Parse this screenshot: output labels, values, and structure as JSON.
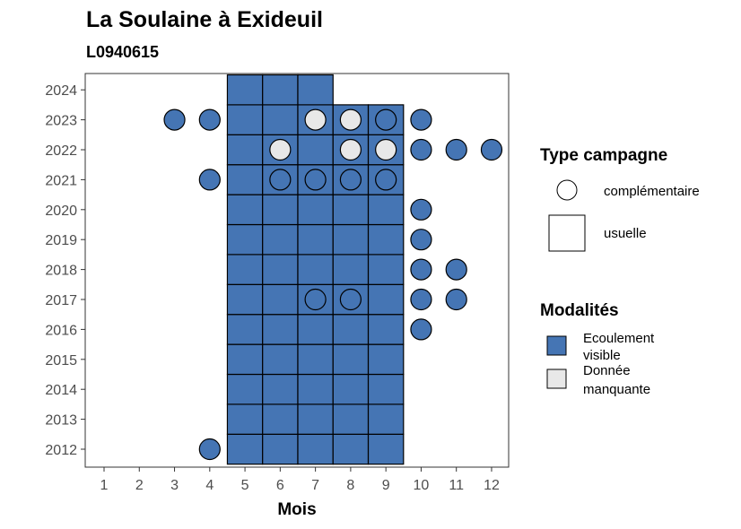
{
  "chart_data": {
    "type": "scatter",
    "title": "La Soulaine à Exideuil",
    "subtitle": "L0940615",
    "xlabel": "Mois",
    "ylabel": "",
    "x_ticks": [
      "1",
      "2",
      "3",
      "4",
      "5",
      "6",
      "7",
      "8",
      "9",
      "10",
      "11",
      "12"
    ],
    "y_ticks": [
      "2012",
      "2013",
      "2014",
      "2015",
      "2016",
      "2017",
      "2018",
      "2019",
      "2020",
      "2021",
      "2022",
      "2023",
      "2024"
    ],
    "xlim": [
      1,
      12
    ],
    "ylim": [
      2012,
      2024
    ],
    "grid": false,
    "legend_position": "right",
    "colors": {
      "ecoulement_visible": "#4575b4",
      "donnee_manquante": "#e8e8e8"
    },
    "legend": {
      "type_title": "Type campagne",
      "type_items": [
        {
          "shape": "circle",
          "label": "complémentaire"
        },
        {
          "shape": "square",
          "label": "usuelle"
        }
      ],
      "modalites_title": "Modalités",
      "modalites_items": [
        {
          "key": "ecoulement_visible",
          "label_lines": [
            "Ecoulement",
            "visible"
          ]
        },
        {
          "key": "donnee_manquante",
          "label_lines": [
            "Donnée",
            "manquante"
          ]
        }
      ]
    },
    "usuelle": [
      {
        "year": 2012,
        "months": [
          5,
          6,
          7,
          8,
          9
        ]
      },
      {
        "year": 2013,
        "months": [
          5,
          6,
          7,
          8,
          9
        ]
      },
      {
        "year": 2014,
        "months": [
          5,
          6,
          7,
          8,
          9
        ]
      },
      {
        "year": 2015,
        "months": [
          5,
          6,
          7,
          8,
          9
        ]
      },
      {
        "year": 2016,
        "months": [
          5,
          6,
          7,
          8,
          9
        ]
      },
      {
        "year": 2017,
        "months": [
          5,
          6,
          7,
          8,
          9
        ]
      },
      {
        "year": 2018,
        "months": [
          5,
          6,
          7,
          8,
          9
        ]
      },
      {
        "year": 2019,
        "months": [
          5,
          6,
          7,
          8,
          9
        ]
      },
      {
        "year": 2020,
        "months": [
          5,
          6,
          7,
          8,
          9
        ]
      },
      {
        "year": 2021,
        "months": [
          5,
          6,
          7,
          8,
          9
        ]
      },
      {
        "year": 2022,
        "months": [
          5,
          6,
          7,
          8,
          9
        ]
      },
      {
        "year": 2023,
        "months": [
          5,
          6,
          7,
          8,
          9
        ]
      },
      {
        "year": 2024,
        "months": [
          5,
          6,
          7
        ]
      }
    ],
    "complementaire": [
      {
        "year": 2012,
        "month": 4,
        "modalite": "ecoulement_visible"
      },
      {
        "year": 2016,
        "month": 10,
        "modalite": "ecoulement_visible"
      },
      {
        "year": 2017,
        "month": 7,
        "modalite": "ecoulement_visible"
      },
      {
        "year": 2017,
        "month": 8,
        "modalite": "ecoulement_visible"
      },
      {
        "year": 2017,
        "month": 10,
        "modalite": "ecoulement_visible"
      },
      {
        "year": 2017,
        "month": 11,
        "modalite": "ecoulement_visible"
      },
      {
        "year": 2018,
        "month": 10,
        "modalite": "ecoulement_visible"
      },
      {
        "year": 2018,
        "month": 11,
        "modalite": "ecoulement_visible"
      },
      {
        "year": 2019,
        "month": 10,
        "modalite": "ecoulement_visible"
      },
      {
        "year": 2020,
        "month": 10,
        "modalite": "ecoulement_visible"
      },
      {
        "year": 2021,
        "month": 4,
        "modalite": "ecoulement_visible"
      },
      {
        "year": 2021,
        "month": 6,
        "modalite": "ecoulement_visible"
      },
      {
        "year": 2021,
        "month": 7,
        "modalite": "ecoulement_visible"
      },
      {
        "year": 2021,
        "month": 8,
        "modalite": "ecoulement_visible"
      },
      {
        "year": 2021,
        "month": 9,
        "modalite": "ecoulement_visible"
      },
      {
        "year": 2022,
        "month": 6,
        "modalite": "donnee_manquante"
      },
      {
        "year": 2022,
        "month": 8,
        "modalite": "donnee_manquante"
      },
      {
        "year": 2022,
        "month": 9,
        "modalite": "donnee_manquante"
      },
      {
        "year": 2022,
        "month": 10,
        "modalite": "ecoulement_visible"
      },
      {
        "year": 2022,
        "month": 11,
        "modalite": "ecoulement_visible"
      },
      {
        "year": 2022,
        "month": 12,
        "modalite": "ecoulement_visible"
      },
      {
        "year": 2023,
        "month": 3,
        "modalite": "ecoulement_visible"
      },
      {
        "year": 2023,
        "month": 4,
        "modalite": "ecoulement_visible"
      },
      {
        "year": 2023,
        "month": 7,
        "modalite": "donnee_manquante"
      },
      {
        "year": 2023,
        "month": 8,
        "modalite": "donnee_manquante"
      },
      {
        "year": 2023,
        "month": 9,
        "modalite": "ecoulement_visible"
      },
      {
        "year": 2023,
        "month": 10,
        "modalite": "ecoulement_visible"
      }
    ]
  }
}
